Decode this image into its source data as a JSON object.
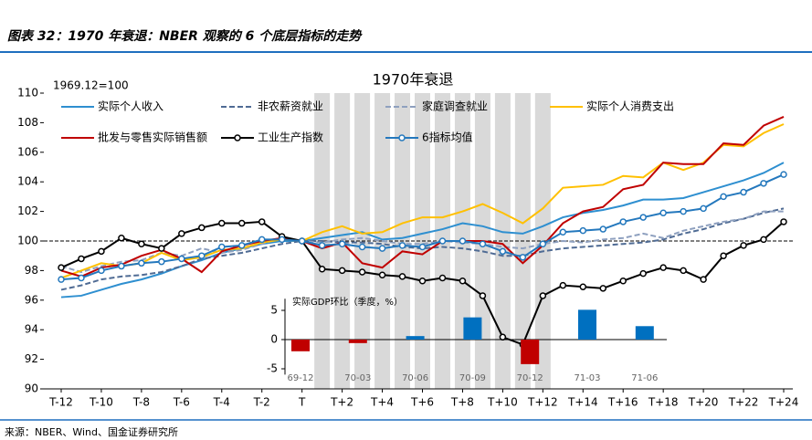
{
  "header": "图表 32：1970 年衰退：NBER 观察的 6 个底层指标的走势",
  "source": "来源：NBER、Wind、国金证券研究所",
  "chart_data": [
    {
      "type": "line",
      "title": "1970年衰退",
      "y_label": "1969.12=100",
      "categories": [
        "T-12",
        null,
        "T-10",
        null,
        "T-8",
        null,
        "T-6",
        null,
        "T-4",
        null,
        "T-2",
        null,
        "T",
        null,
        "T+2",
        null,
        "T+4",
        null,
        "T+6",
        null,
        "T+8",
        null,
        "T+10",
        null,
        "T+12",
        null,
        "T+14",
        null,
        "T+16",
        null,
        "T+18",
        null,
        "T+20",
        null,
        "T+22",
        null,
        "T+24"
      ],
      "ylim": [
        90,
        110
      ],
      "yticks": [
        90,
        92,
        94,
        96,
        98,
        100,
        102,
        104,
        106,
        108,
        110
      ],
      "reference_line": 100,
      "series": [
        {
          "name": "实际个人收入",
          "color": "#2e8fd0",
          "dash": false,
          "marker": null,
          "values": [
            96.2,
            96.3,
            96.7,
            97.1,
            97.4,
            97.8,
            98.3,
            98.7,
            99.2,
            99.5,
            99.8,
            100.0,
            100.0,
            100.2,
            100.4,
            100.6,
            100.1,
            100.2,
            100.5,
            100.8,
            101.2,
            101.0,
            100.6,
            100.5,
            101.0,
            101.6,
            101.9,
            102.1,
            102.4,
            102.8,
            102.8,
            102.9,
            103.3,
            103.7,
            104.1,
            104.6,
            105.3
          ]
        },
        {
          "name": "非农薪资就业",
          "color": "#4f6b94",
          "dash": true,
          "marker": null,
          "values": [
            96.7,
            97.0,
            97.4,
            97.6,
            97.7,
            97.9,
            98.3,
            98.8,
            99.0,
            99.2,
            99.5,
            99.8,
            100.0,
            100.0,
            99.9,
            99.9,
            99.8,
            99.6,
            99.5,
            99.6,
            99.5,
            99.3,
            99.0,
            99.0,
            99.3,
            99.5,
            99.6,
            99.7,
            99.8,
            99.9,
            100.1,
            100.5,
            100.8,
            101.2,
            101.5,
            101.9,
            102.2
          ]
        },
        {
          "name": "家庭调查就业",
          "color": "#8ea0bf",
          "dash": true,
          "marker": null,
          "values": [
            98.3,
            97.9,
            98.3,
            98.6,
            98.7,
            99.2,
            99.0,
            99.5,
            99.2,
            99.4,
            99.8,
            100.2,
            100.0,
            99.9,
            100.1,
            100.2,
            100.0,
            99.8,
            99.8,
            100.0,
            99.9,
            99.8,
            99.6,
            99.5,
            99.8,
            100.0,
            99.9,
            100.1,
            100.2,
            100.5,
            100.2,
            100.7,
            101.0,
            101.3,
            101.5,
            102.0,
            102.0
          ]
        },
        {
          "name": "实际个人消费支出",
          "color": "#ffc000",
          "dash": false,
          "marker": null,
          "values": [
            97.5,
            98.0,
            98.5,
            98.3,
            98.5,
            99.2,
            98.7,
            98.9,
            99.4,
            99.5,
            99.9,
            100.1,
            100.0,
            100.6,
            101.0,
            100.5,
            100.6,
            101.2,
            101.6,
            101.6,
            102.0,
            102.5,
            101.9,
            101.2,
            102.2,
            103.6,
            103.7,
            103.8,
            104.4,
            104.3,
            105.3,
            104.8,
            105.3,
            106.5,
            106.4,
            107.3,
            107.9
          ]
        },
        {
          "name": "批发与零售实际销售额",
          "color": "#c00000",
          "dash": false,
          "marker": null,
          "values": [
            98.0,
            97.6,
            98.2,
            98.4,
            99.0,
            99.4,
            98.8,
            97.9,
            99.3,
            99.7,
            100.0,
            100.2,
            100.0,
            99.5,
            99.9,
            98.5,
            98.2,
            99.3,
            99.1,
            100.0,
            100.0,
            100.0,
            99.8,
            98.5,
            99.7,
            101.2,
            102.0,
            102.3,
            103.5,
            103.8,
            105.3,
            105.2,
            105.2,
            106.6,
            106.5,
            107.8,
            108.4
          ]
        },
        {
          "name": "工业生产指数",
          "color": "#000000",
          "dash": false,
          "marker": "circle",
          "values": [
            98.2,
            98.8,
            99.3,
            100.2,
            99.8,
            99.5,
            100.5,
            100.9,
            101.2,
            101.2,
            101.3,
            100.3,
            100.0,
            98.1,
            98.0,
            97.9,
            97.7,
            97.6,
            97.3,
            97.5,
            97.3,
            96.3,
            93.5,
            93.0,
            96.3,
            97.0,
            96.9,
            96.8,
            97.3,
            97.8,
            98.2,
            98.0,
            97.4,
            99.0,
            99.7,
            100.1,
            101.3
          ]
        },
        {
          "name": "6指标均值",
          "color": "#2478bd",
          "dash": false,
          "marker": "circle",
          "values": [
            97.4,
            97.5,
            98.0,
            98.3,
            98.5,
            98.6,
            98.8,
            99.0,
            99.6,
            99.7,
            100.1,
            100.1,
            100.0,
            99.7,
            99.8,
            99.6,
            99.5,
            99.7,
            99.6,
            100.0,
            100.0,
            99.8,
            99.3,
            98.9,
            99.8,
            100.6,
            100.7,
            100.8,
            101.3,
            101.6,
            101.9,
            102.0,
            102.2,
            103.0,
            103.3,
            103.9,
            104.5
          ]
        }
      ]
    },
    {
      "type": "bar",
      "title": "实际GDP环比（季度，%）",
      "categories": [
        "69-12",
        "70-03",
        "70-06",
        "70-09",
        "70-12",
        "71-03",
        "71-06"
      ],
      "values": [
        -2.0,
        -0.6,
        0.6,
        3.8,
        -4.2,
        5.1,
        2.3
      ],
      "colors": [
        "#c00000",
        "#c00000",
        "#0070c0",
        "#0070c0",
        "#c00000",
        "#0070c0",
        "#0070c0"
      ],
      "ylim": [
        -6,
        7
      ],
      "yticks": [
        -5,
        0,
        5
      ]
    }
  ]
}
